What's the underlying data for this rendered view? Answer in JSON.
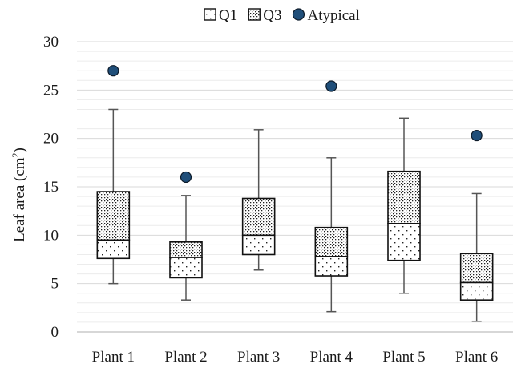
{
  "chart_data": {
    "type": "box",
    "ylabel_base": "Leaf area (cm",
    "ylabel_sup": "2",
    "ylabel_close": ")",
    "ylim": [
      0,
      30
    ],
    "yticks": [
      "0",
      "5",
      "10",
      "15",
      "20",
      "25",
      "30"
    ],
    "ytick_values": [
      0,
      5,
      10,
      15,
      20,
      25,
      30
    ],
    "grid": true,
    "legend_position": "top",
    "legend": [
      {
        "label": "Q1",
        "style": "sparse-dots"
      },
      {
        "label": "Q3",
        "style": "dense-dots"
      },
      {
        "label": "Atypical",
        "style": "marker"
      }
    ],
    "categories": [
      "Plant 1",
      "Plant 2",
      "Plant 3",
      "Plant 4",
      "Plant 5",
      "Plant 6"
    ],
    "boxes": [
      {
        "min": 5.0,
        "q1": 7.6,
        "median": 9.5,
        "q3": 14.5,
        "max": 23.0,
        "outliers": [
          27.0
        ]
      },
      {
        "min": 3.3,
        "q1": 5.6,
        "median": 7.7,
        "q3": 9.3,
        "max": 14.1,
        "outliers": [
          16.0
        ]
      },
      {
        "min": 6.4,
        "q1": 8.0,
        "median": 10.0,
        "q3": 13.8,
        "max": 20.9,
        "outliers": []
      },
      {
        "min": 2.1,
        "q1": 5.8,
        "median": 7.8,
        "q3": 10.8,
        "max": 18.0,
        "outliers": [
          25.4
        ]
      },
      {
        "min": 4.0,
        "q1": 7.4,
        "median": 11.2,
        "q3": 16.6,
        "max": 22.1,
        "outliers": []
      },
      {
        "min": 1.1,
        "q1": 3.3,
        "median": 5.1,
        "q3": 8.1,
        "max": 14.3,
        "outliers": [
          20.3
        ]
      }
    ],
    "colors": {
      "box_fill": "#ffffff",
      "box_stroke": "#111111",
      "whisker": "#555555",
      "outlier_fill": "#1f4e79",
      "outlier_stroke": "#0d1b2a",
      "gridline": "#d9d9d9",
      "axis": "#bfbfbf"
    }
  }
}
